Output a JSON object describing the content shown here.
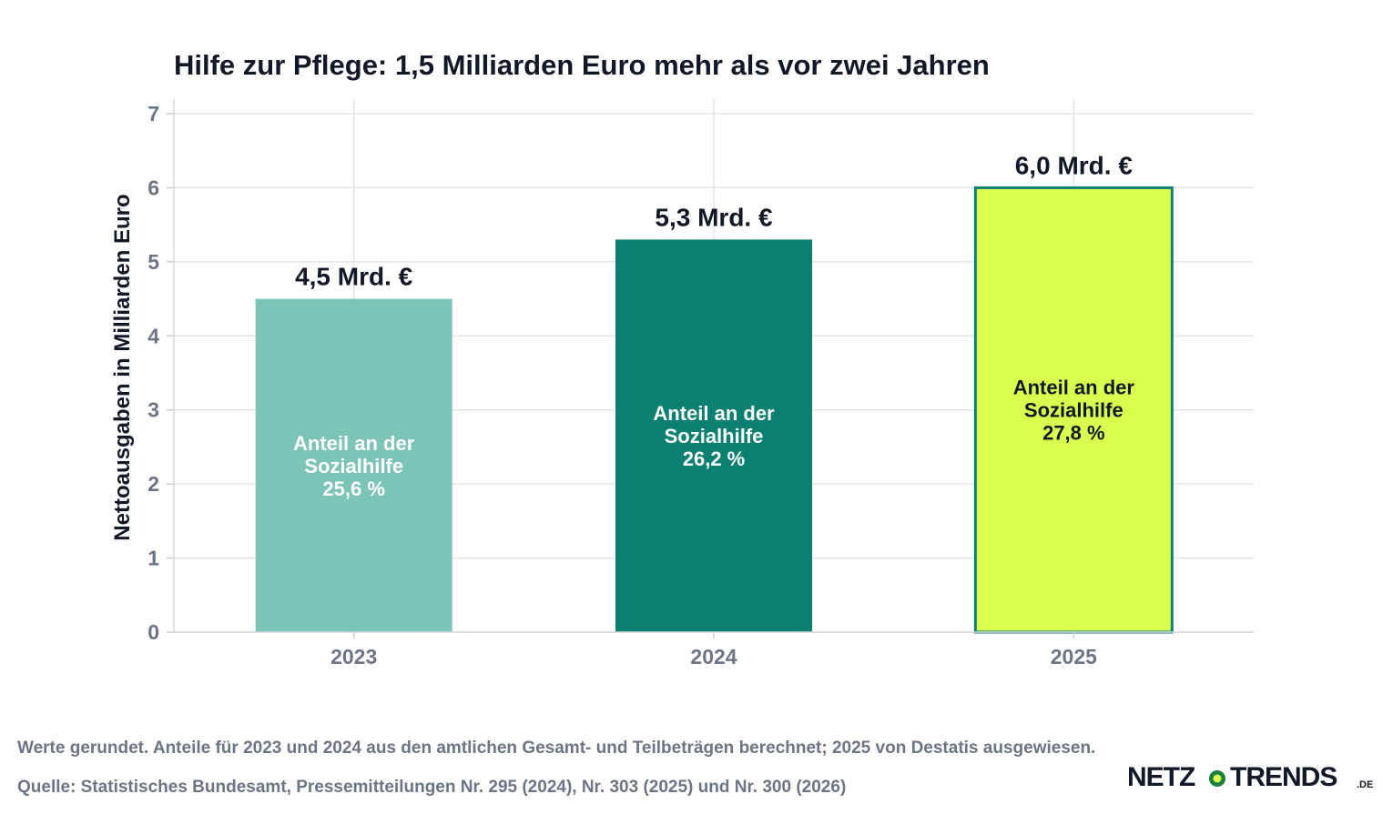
{
  "chart_data": {
    "type": "bar",
    "title": "Hilfe zur Pflege: 1,5 Milliarden Euro mehr als vor zwei Jahren",
    "xlabel": "",
    "ylabel": "Nettoausgaben in Milliarden Euro",
    "ylim": [
      0,
      7
    ],
    "yticks": [
      "0",
      "1",
      "2",
      "3",
      "4",
      "5",
      "6",
      "7"
    ],
    "categories": [
      "2023",
      "2024",
      "2025"
    ],
    "values": [
      4.5,
      5.3,
      6.0
    ],
    "value_labels": [
      "4,5 Mrd. €",
      "5,3 Mrd. €",
      "6,0 Mrd. €"
    ],
    "inner_labels": [
      [
        "Anteil an der",
        "Sozialhilfe",
        "25,6 %"
      ],
      [
        "Anteil an der",
        "Sozialhilfe",
        "26,2 %"
      ],
      [
        "Anteil an der",
        "Sozialhilfe",
        "27,8 %"
      ]
    ],
    "colors": [
      "#7dc4b8",
      "#0b7f71",
      "#d9ff4f"
    ],
    "inner_label_colors": [
      "#ffffff",
      "#ffffff",
      "#111827"
    ],
    "highlight_outline": "#0b7f71",
    "grid": true
  },
  "footnote": "Werte gerundet. Anteile für 2023 und 2024 aus den amtlichen Gesamt- und Teilbeträgen berechnet; 2025 von Destatis ausgewiesen.",
  "source": "Quelle: Statistisches Bundesamt, Pressemitteilungen Nr. 295 (2024), Nr. 303 (2025) und Nr. 300 (2026)",
  "logo": {
    "left": "NETZ",
    "right": "TRENDS",
    "tld": ".DE",
    "accent": "#1a7f3c",
    "dot": "#d9ff4f"
  }
}
